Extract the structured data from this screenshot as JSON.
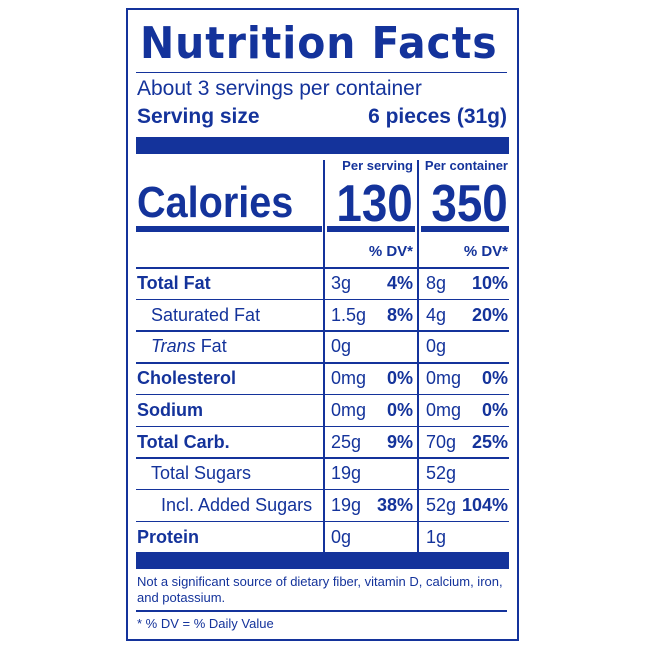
{
  "title": "Nutrition Facts",
  "servings_per_container": "About 3 servings per container",
  "serving_size_label": "Serving size",
  "serving_size_value": "6 pieces (31g)",
  "columns": {
    "per_serving": "Per serving",
    "per_container": "Per container"
  },
  "calories": {
    "label": "Calories",
    "per_serving": "130",
    "per_container": "350"
  },
  "dv_header": "% DV*",
  "nutrients": [
    {
      "label": "Total Fat",
      "bold": true,
      "indent": 0,
      "serving_amount": "3g",
      "serving_dv": "4%",
      "container_amount": "8g",
      "container_dv": "10%"
    },
    {
      "label": "Saturated Fat",
      "bold": false,
      "indent": 1,
      "serving_amount": "1.5g",
      "serving_dv": "8%",
      "container_amount": "4g",
      "container_dv": "20%"
    },
    {
      "label": "Trans",
      "label_suffix": " Fat",
      "bold": false,
      "indent": 1,
      "serving_amount": "0g",
      "serving_dv": "",
      "container_amount": "0g",
      "container_dv": ""
    },
    {
      "label": "Cholesterol",
      "bold": true,
      "indent": 0,
      "serving_amount": "0mg",
      "serving_dv": "0%",
      "container_amount": "0mg",
      "container_dv": "0%"
    },
    {
      "label": "Sodium",
      "bold": true,
      "indent": 0,
      "serving_amount": "0mg",
      "serving_dv": "0%",
      "container_amount": "0mg",
      "container_dv": "0%"
    },
    {
      "label": "Total Carb.",
      "bold": true,
      "indent": 0,
      "serving_amount": "25g",
      "serving_dv": "9%",
      "container_amount": "70g",
      "container_dv": "25%"
    },
    {
      "label": "Total Sugars",
      "bold": false,
      "indent": 1,
      "serving_amount": "19g",
      "serving_dv": "",
      "container_amount": "52g",
      "container_dv": ""
    },
    {
      "label": "Incl. Added Sugars",
      "bold": false,
      "indent": 2,
      "serving_amount": "19g",
      "serving_dv": "38%",
      "container_amount": "52g",
      "container_dv": "104%"
    },
    {
      "label": "Protein",
      "bold": true,
      "indent": 0,
      "serving_amount": "0g",
      "serving_dv": "",
      "container_amount": "1g",
      "container_dv": ""
    }
  ],
  "footnote_sources": "Not a significant source of dietary fiber, vitamin D, calcium, iron, and potassium.",
  "footnote_dv": "* % DV = % Daily Value",
  "colors": {
    "ink": "#14339b"
  }
}
